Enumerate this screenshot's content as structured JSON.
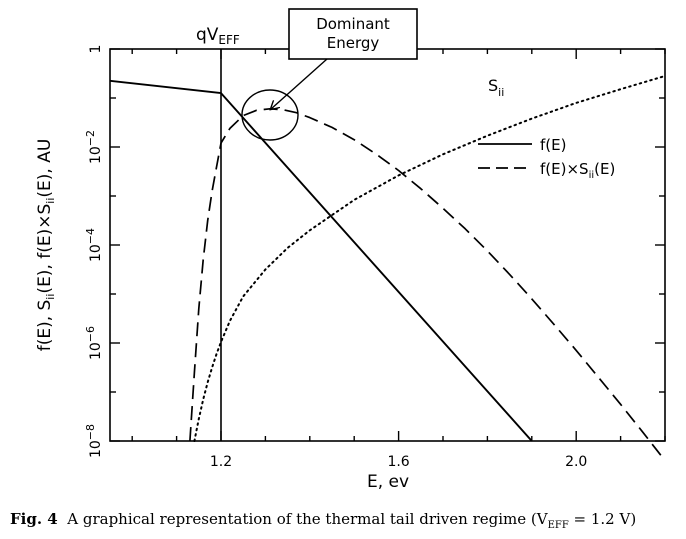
{
  "chart_data": {
    "type": "line",
    "title": "",
    "xlabel": "E, ev",
    "ylabel_parts": [
      "f(E), S",
      "ii",
      "(E), f(E)×S",
      "ii",
      "(E), AU"
    ],
    "xlim": [
      0.95,
      2.2
    ],
    "ylim_log10": [
      -8,
      0
    ],
    "y_scale": "log",
    "x_ticks": [
      1.2,
      1.6,
      2.0
    ],
    "x_tick_labels": [
      "1.2",
      "1.6",
      "2.0"
    ],
    "y_ticks_log10": [
      0,
      -2,
      -4,
      -6,
      -8
    ],
    "y_tick_labels": [
      {
        "base": "1",
        "exp": ""
      },
      {
        "base": "10",
        "exp": "−2"
      },
      {
        "base": "10",
        "exp": "−4"
      },
      {
        "base": "10",
        "exp": "−6"
      },
      {
        "base": "10",
        "exp": "−8"
      }
    ],
    "grid": false,
    "legend_position": "right",
    "series": [
      {
        "name": "f(E)",
        "style": "solid",
        "x": [
          0.95,
          1.2,
          1.9
        ],
        "y_log10": [
          -0.65,
          -0.9,
          -8.0
        ]
      },
      {
        "name": "f(E)×S(E)",
        "style": "dashed",
        "x": [
          1.13,
          1.14,
          1.15,
          1.16,
          1.17,
          1.18,
          1.19,
          1.2,
          1.22,
          1.25,
          1.28,
          1.31,
          1.34,
          1.37,
          1.4,
          1.45,
          1.5,
          1.55,
          1.6,
          1.65,
          1.7,
          1.75,
          1.8,
          1.85,
          1.9,
          1.95,
          2.0,
          2.05,
          2.1,
          2.15,
          2.2
        ],
        "y_log10": [
          -8.0,
          -6.6,
          -5.3,
          -4.3,
          -3.5,
          -2.9,
          -2.4,
          -1.92,
          -1.62,
          -1.36,
          -1.25,
          -1.22,
          -1.24,
          -1.3,
          -1.4,
          -1.6,
          -1.85,
          -2.15,
          -2.48,
          -2.85,
          -3.25,
          -3.67,
          -4.12,
          -4.6,
          -5.1,
          -5.62,
          -6.15,
          -6.7,
          -7.25,
          -7.82,
          -8.4
        ]
      },
      {
        "name": "S",
        "style": "dotted",
        "x": [
          1.14,
          1.15,
          1.16,
          1.17,
          1.18,
          1.19,
          1.2,
          1.22,
          1.25,
          1.3,
          1.35,
          1.4,
          1.5,
          1.6,
          1.7,
          1.8,
          1.9,
          2.0,
          2.1,
          2.2
        ],
        "y_log10": [
          -8.0,
          -7.55,
          -7.15,
          -6.8,
          -6.5,
          -6.22,
          -5.98,
          -5.55,
          -5.05,
          -4.5,
          -4.06,
          -3.7,
          -3.08,
          -2.58,
          -2.15,
          -1.77,
          -1.42,
          -1.1,
          -0.82,
          -0.55
        ]
      }
    ],
    "series_labels": {
      "s_label": {
        "base": "S",
        "sub": "ii"
      }
    },
    "legend": [
      {
        "label_base": "f(E)",
        "sub": "",
        "tail": "",
        "style": "solid"
      },
      {
        "label_base": "f(E)×S",
        "sub": "ii",
        "tail": "(E)",
        "style": "dashed"
      }
    ],
    "annotations": {
      "qveff": {
        "base": "qV",
        "sub": "EFF",
        "x": 1.2
      },
      "callout": {
        "lines": [
          "Dominant",
          "Energy"
        ]
      }
    }
  },
  "caption": {
    "fig_label": "Fig. 4",
    "text": "A graphical representation of the thermal tail driven regime (V",
    "sub": "EFF",
    "tail": " = 1.2 V)"
  }
}
